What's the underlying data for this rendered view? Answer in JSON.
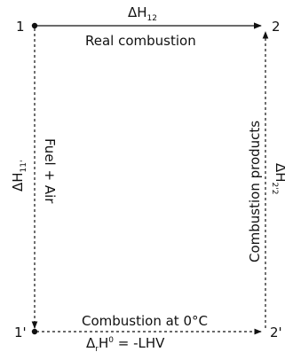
{
  "nodes": {
    "n1": "1",
    "n2": "2",
    "n1p": "1'",
    "n2p": "2'"
  },
  "edges": {
    "top": {
      "symbol": "ΔH",
      "sub": "12",
      "label": "Real combustion"
    },
    "left": {
      "symbol": "ΔH",
      "sub": "11'",
      "label": "Fuel + Air"
    },
    "right": {
      "symbol": "ΔH",
      "sub": "2'2",
      "label": "Combustion products"
    },
    "bottom": {
      "label": "Combustion at 0°C",
      "eq_delta": "Δ",
      "eq_r": "r",
      "eq_h": "H",
      "eq_0": "0",
      "eq_rhs": " = -LHV"
    }
  },
  "colors": {
    "line": "#111111"
  }
}
